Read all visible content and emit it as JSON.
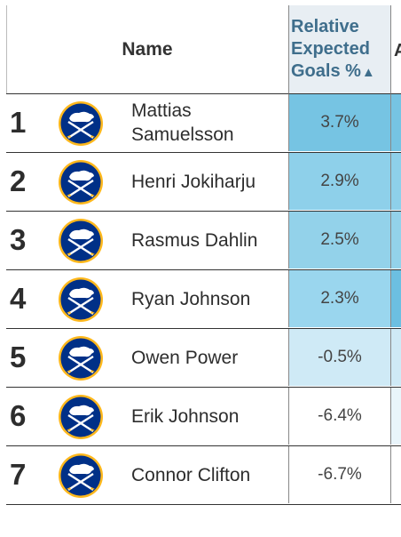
{
  "header": {
    "name_label": "Name",
    "metric_line1": "Relative",
    "metric_line2": "Expected",
    "metric_line3": "Goals %",
    "sort_icon": "sort-updown-icon",
    "next_column_partial": "A"
  },
  "rows": [
    {
      "rank": "1",
      "name": "Mattias Samuelsson",
      "value": "3.7%",
      "value_num": 3.7,
      "bg": "#76c4e3",
      "edge": "#76c4e3"
    },
    {
      "rank": "2",
      "name": "Henri Jokiharju",
      "value": "2.9%",
      "value_num": 2.9,
      "bg": "#8ed0ea",
      "edge": "#8ed0ea"
    },
    {
      "rank": "3",
      "name": "Rasmus Dahlin",
      "value": "2.5%",
      "value_num": 2.5,
      "bg": "#93d2ea",
      "edge": "#93d2ea"
    },
    {
      "rank": "4",
      "name": "Ryan Johnson",
      "value": "2.3%",
      "value_num": 2.3,
      "bg": "#9ad6ee",
      "edge": "#6cbfe1"
    },
    {
      "rank": "5",
      "name": "Owen Power",
      "value": "-0.5%",
      "value_num": -0.5,
      "bg": "#cfeaf6",
      "edge": "#cfeaf6"
    },
    {
      "rank": "6",
      "name": "Erik Johnson",
      "value": "-6.4%",
      "value_num": -6.4,
      "bg": "#ffffff",
      "edge": "#e9f5fb"
    },
    {
      "rank": "7",
      "name": "Connor Clifton",
      "value": "-6.7%",
      "value_num": -6.7,
      "bg": "#ffffff",
      "edge": "#ffffff"
    }
  ],
  "colors": {
    "sabres_navy": "#003087",
    "sabres_gold": "#FFB81C",
    "header_metric": "#3f6e8c"
  },
  "logo_icon": "buffalo-sabres-logo-icon"
}
